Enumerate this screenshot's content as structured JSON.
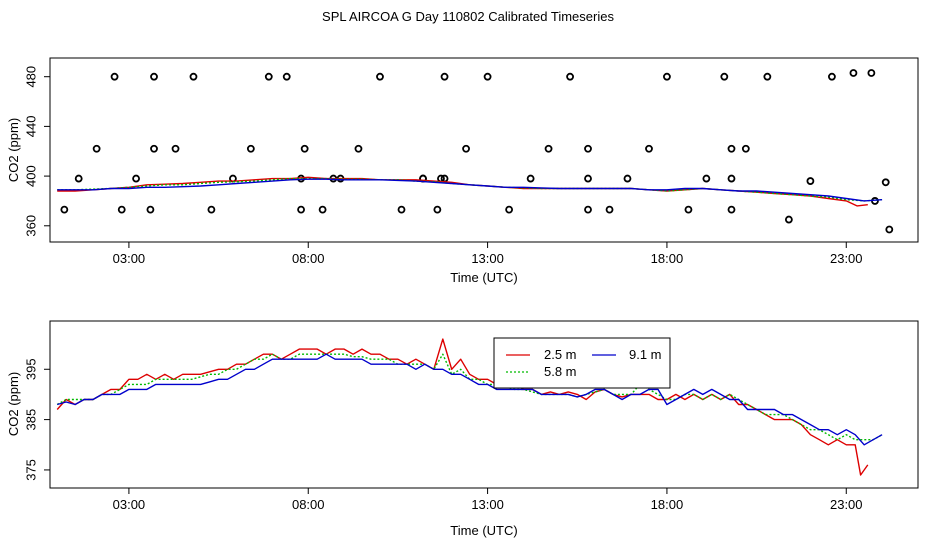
{
  "title": "SPL AIRCOA G  Day 110802  Calibrated Timeseries",
  "colors": {
    "s25": "#dd0000",
    "s58": "#00bb00",
    "s91": "#0000cc",
    "frame": "#000000"
  },
  "chart_data": [
    {
      "type": "line",
      "id": "top",
      "xlabel": "Time (UTC)",
      "ylabel": "CO2 (ppm)",
      "xlim": [
        0.8,
        25.0
      ],
      "ylim": [
        355.0,
        487.0
      ],
      "xticks": [
        3,
        8,
        13,
        18,
        23
      ],
      "xtick_labels": [
        "03:00",
        "08:00",
        "13:00",
        "18:00",
        "23:00"
      ],
      "yticks": [
        360,
        400,
        440,
        480
      ],
      "ytick_labels": [
        "360",
        "400",
        "440",
        "480"
      ],
      "series": [
        {
          "name": "2.5 m",
          "color": "#dd0000",
          "x": [
            1,
            1.5,
            2,
            2.5,
            3,
            3.5,
            4,
            4.5,
            5,
            5.5,
            6,
            6.5,
            7,
            7.5,
            8,
            8.5,
            9,
            9.5,
            10,
            10.5,
            11,
            11.5,
            12,
            12.5,
            13,
            13.5,
            14,
            14.5,
            15,
            15.5,
            16,
            16.5,
            17,
            17.5,
            18,
            18.5,
            19,
            19.5,
            20,
            20.5,
            21,
            21.5,
            22,
            22.5,
            23,
            23.3,
            23.6
          ],
          "y": [
            388,
            388,
            389,
            390,
            391,
            393,
            393.5,
            394,
            395,
            396,
            396,
            397,
            398,
            398,
            399,
            398,
            398,
            398,
            397,
            397,
            397,
            396,
            395,
            393,
            392,
            391,
            390,
            390,
            390,
            390,
            390,
            390,
            390,
            389,
            388,
            389,
            390,
            389,
            388,
            387,
            386,
            385,
            384,
            382,
            380,
            376,
            377
          ]
        },
        {
          "name": "5.8 m",
          "color": "#00bb00",
          "x": [
            1,
            1.5,
            2,
            2.5,
            3,
            3.5,
            4,
            4.5,
            5,
            5.5,
            6,
            6.5,
            7,
            7.5,
            8,
            8.5,
            9,
            9.5,
            10,
            10.5,
            11,
            11.5,
            12,
            12.5,
            13,
            13.5,
            14,
            14.5,
            15,
            15.5,
            16,
            16.5,
            17,
            17.5,
            18,
            18.5,
            19,
            19.5,
            20,
            20.5,
            21,
            21.5,
            22,
            22.5,
            23,
            23.5,
            24
          ],
          "y": [
            389,
            389,
            389.5,
            390,
            391,
            392,
            393,
            393,
            394,
            395,
            395.5,
            396,
            397,
            398,
            398,
            398,
            397.5,
            397.5,
            397,
            397,
            396,
            395.5,
            394,
            393,
            392,
            391,
            390.5,
            390,
            390,
            390,
            390,
            390,
            390,
            389,
            388,
            389,
            390,
            389,
            388,
            387,
            386,
            385,
            384,
            383,
            381,
            380,
            381
          ]
        },
        {
          "name": "9.1 m",
          "color": "#0000cc",
          "x": [
            1,
            1.5,
            2,
            2.5,
            3,
            3.5,
            4,
            4.5,
            5,
            5.5,
            6,
            6.5,
            7,
            7.5,
            8,
            8.5,
            9,
            9.5,
            10,
            10.5,
            11,
            11.5,
            12,
            12.5,
            13,
            13.5,
            14,
            14.5,
            15,
            15.5,
            16,
            16.5,
            17,
            17.5,
            18,
            18.5,
            19,
            19.5,
            20,
            20.5,
            21,
            21.5,
            22,
            22.5,
            23,
            23.5,
            24
          ],
          "y": [
            389,
            389,
            389,
            390,
            390,
            391,
            391,
            391.5,
            392,
            393,
            394,
            395,
            396,
            397,
            397.5,
            397.5,
            397,
            397,
            397,
            396.5,
            396,
            395,
            394,
            393,
            392,
            391,
            391,
            390.5,
            390,
            390,
            390,
            390,
            390,
            389,
            389,
            390,
            390,
            389,
            388,
            388,
            387,
            386,
            385,
            384,
            382,
            380,
            381
          ]
        }
      ],
      "points": {
        "x": [
          1.2,
          1.6,
          2.1,
          2.6,
          3.2,
          3.7,
          4.3,
          4.8,
          5.3,
          5.9,
          6.4,
          6.9,
          7.4,
          7.9,
          8.4,
          8.9,
          9.4,
          10.0,
          10.6,
          11.2,
          11.8,
          12.4,
          13.0,
          13.6,
          14.2,
          14.7,
          15.3,
          15.8,
          16.4,
          16.9,
          17.5,
          18.0,
          18.6,
          19.1,
          19.6,
          20.2,
          20.8,
          21.4,
          22.0,
          22.6,
          23.2,
          23.7,
          24.1,
          24.2,
          23.8,
          2.8,
          3.6,
          7.8,
          11.6,
          15.8,
          19.8,
          7.8,
          11.2,
          11.7,
          15.8,
          19.8,
          3.7,
          8.7,
          11.8,
          19.8
        ],
        "y": [
          373,
          398,
          422,
          480,
          398,
          480,
          422,
          480,
          373,
          398,
          422,
          480,
          480,
          422,
          373,
          398,
          422,
          480,
          373,
          398,
          480,
          422,
          480,
          373,
          398,
          422,
          480,
          398,
          373,
          398,
          422,
          480,
          373,
          398,
          480,
          422,
          480,
          365,
          396,
          480,
          483,
          483,
          395,
          357,
          380,
          373,
          373,
          398,
          373,
          373,
          373,
          373,
          398,
          398,
          422,
          398,
          422,
          398,
          398,
          422
        ]
      }
    },
    {
      "type": "line",
      "id": "bottom",
      "xlabel": "Time (UTC)",
      "ylabel": "CO2 (ppm)",
      "xlim": [
        0.8,
        25.0
      ],
      "ylim": [
        373.0,
        403.0
      ],
      "xticks": [
        3,
        8,
        13,
        18,
        23
      ],
      "xtick_labels": [
        "03:00",
        "08:00",
        "13:00",
        "18:00",
        "23:00"
      ],
      "yticks": [
        375,
        385,
        395
      ],
      "ytick_labels": [
        "375",
        "385",
        "395"
      ],
      "legend": {
        "position": "center",
        "labels": [
          "2.5 m",
          "5.8 m",
          "9.1 m"
        ]
      },
      "series": [
        {
          "name": "2.5 m",
          "color": "#dd0000",
          "x": [
            1.0,
            1.25,
            1.5,
            1.75,
            2.0,
            2.25,
            2.5,
            2.75,
            3.0,
            3.25,
            3.5,
            3.75,
            4.0,
            4.25,
            4.5,
            4.75,
            5.0,
            5.25,
            5.5,
            5.75,
            6.0,
            6.25,
            6.5,
            6.75,
            7.0,
            7.25,
            7.5,
            7.75,
            8.0,
            8.25,
            8.5,
            8.75,
            9.0,
            9.25,
            9.5,
            9.75,
            10.0,
            10.25,
            10.5,
            10.75,
            11.0,
            11.25,
            11.5,
            11.75,
            12.0,
            12.25,
            12.5,
            12.75,
            13.0,
            13.25,
            13.5,
            13.75,
            14.0,
            14.25,
            14.5,
            14.75,
            15.0,
            15.25,
            15.5,
            15.75,
            16.0,
            16.25,
            16.5,
            16.75,
            17.0,
            17.25,
            17.5,
            17.75,
            18.0,
            18.25,
            18.5,
            18.75,
            19.0,
            19.25,
            19.5,
            19.75,
            20.0,
            20.25,
            20.5,
            20.75,
            21.0,
            21.25,
            21.5,
            21.75,
            22.0,
            22.25,
            22.5,
            22.75,
            23.0,
            23.25,
            23.4,
            23.6
          ],
          "y": [
            387,
            389,
            388,
            389,
            389,
            390,
            391,
            391,
            393,
            393,
            394,
            393,
            394,
            393,
            394,
            394,
            394,
            394.5,
            395,
            395,
            396,
            396,
            397,
            398,
            398,
            397,
            398,
            399,
            399,
            399,
            398,
            399,
            399,
            398,
            399,
            398,
            398,
            397,
            397,
            396,
            397,
            396,
            395,
            401,
            395,
            397,
            394,
            393,
            393,
            392,
            392,
            392,
            391,
            391,
            390,
            390.5,
            390,
            390.5,
            390,
            389,
            390.5,
            391,
            390,
            389.5,
            390,
            390,
            390,
            389,
            389,
            390,
            389,
            390,
            389,
            390,
            389,
            390,
            388,
            388,
            387,
            386,
            385,
            385,
            385,
            384,
            382,
            381,
            380,
            381,
            380,
            380,
            374,
            376
          ]
        },
        {
          "name": "5.8 m",
          "color": "#00bb00",
          "x": [
            1.0,
            1.25,
            1.5,
            1.75,
            2.0,
            2.25,
            2.5,
            2.75,
            3.0,
            3.25,
            3.5,
            3.75,
            4.0,
            4.25,
            4.5,
            4.75,
            5.0,
            5.25,
            5.5,
            5.75,
            6.0,
            6.25,
            6.5,
            6.75,
            7.0,
            7.25,
            7.5,
            7.75,
            8.0,
            8.25,
            8.5,
            8.75,
            9.0,
            9.25,
            9.5,
            9.75,
            10.0,
            10.25,
            10.5,
            10.75,
            11.0,
            11.25,
            11.5,
            11.75,
            12.0,
            12.25,
            12.5,
            12.75,
            13.0,
            13.25,
            13.5,
            13.75,
            14.0,
            14.25,
            14.5,
            14.75,
            15.0,
            15.25,
            15.5,
            15.75,
            16.0,
            16.25,
            16.5,
            16.75,
            17.0,
            17.25,
            17.5,
            17.75,
            18.0,
            18.25,
            18.5,
            18.75,
            19.0,
            19.25,
            19.5,
            19.75,
            20.0,
            20.25,
            20.5,
            20.75,
            21.0,
            21.25,
            21.5,
            21.75,
            22.0,
            22.25,
            22.5,
            22.75,
            23.0,
            23.25,
            23.5,
            23.75,
            24.0
          ],
          "y": [
            388,
            389,
            389,
            389,
            389,
            390,
            390,
            391,
            392,
            392,
            392,
            393,
            393,
            393,
            393,
            393,
            393.5,
            394,
            394,
            395,
            395,
            396,
            397,
            397,
            398,
            397,
            397,
            398,
            398,
            398,
            398,
            398,
            398,
            397.5,
            397.5,
            397,
            397,
            397,
            396,
            396,
            396,
            396,
            395,
            398,
            394,
            395,
            393,
            393,
            392,
            392,
            391.5,
            391,
            391,
            390.5,
            390,
            390,
            390,
            390,
            389.5,
            390,
            390.5,
            391,
            390,
            390,
            390,
            392,
            391,
            390,
            389,
            389,
            390,
            390,
            389,
            390,
            389,
            390,
            389,
            388,
            387,
            386,
            386,
            386,
            385,
            384,
            383,
            383,
            382,
            381,
            382,
            381,
            381,
            381,
            382
          ]
        },
        {
          "name": "9.1 m",
          "color": "#0000cc",
          "x": [
            1.0,
            1.25,
            1.5,
            1.75,
            2.0,
            2.25,
            2.5,
            2.75,
            3.0,
            3.25,
            3.5,
            3.75,
            4.0,
            4.25,
            4.5,
            4.75,
            5.0,
            5.25,
            5.5,
            5.75,
            6.0,
            6.25,
            6.5,
            6.75,
            7.0,
            7.25,
            7.5,
            7.75,
            8.0,
            8.25,
            8.5,
            8.75,
            9.0,
            9.25,
            9.5,
            9.75,
            10.0,
            10.25,
            10.5,
            10.75,
            11.0,
            11.25,
            11.5,
            11.75,
            12.0,
            12.25,
            12.5,
            12.75,
            13.0,
            13.25,
            13.5,
            13.75,
            14.0,
            14.25,
            14.5,
            14.75,
            15.0,
            15.25,
            15.5,
            15.75,
            16.0,
            16.25,
            16.5,
            16.75,
            17.0,
            17.25,
            17.5,
            17.75,
            18.0,
            18.25,
            18.5,
            18.75,
            19.0,
            19.25,
            19.5,
            19.75,
            20.0,
            20.25,
            20.5,
            20.75,
            21.0,
            21.25,
            21.5,
            21.75,
            22.0,
            22.25,
            22.5,
            22.75,
            23.0,
            23.25,
            23.5,
            23.75,
            24.0
          ],
          "y": [
            388,
            388.5,
            388,
            389,
            389,
            390,
            390,
            390,
            391,
            391,
            391,
            392,
            392,
            392,
            392,
            392,
            392,
            392.5,
            393,
            393,
            394,
            395,
            395,
            396,
            397,
            397,
            397,
            397,
            397,
            397,
            398,
            397,
            397,
            397,
            397,
            396,
            396,
            396,
            396,
            396,
            395,
            396,
            395,
            395,
            394,
            394,
            393,
            392,
            392,
            391,
            391,
            391,
            391,
            391,
            390,
            390,
            390,
            390,
            389.5,
            390,
            391,
            391,
            390,
            389,
            390,
            390,
            391,
            391,
            388,
            389,
            390,
            391,
            390,
            391,
            390,
            389,
            389,
            387,
            387,
            387,
            387,
            386,
            386,
            385,
            384,
            383,
            383,
            382,
            383,
            382,
            380,
            381,
            382
          ]
        }
      ]
    }
  ]
}
